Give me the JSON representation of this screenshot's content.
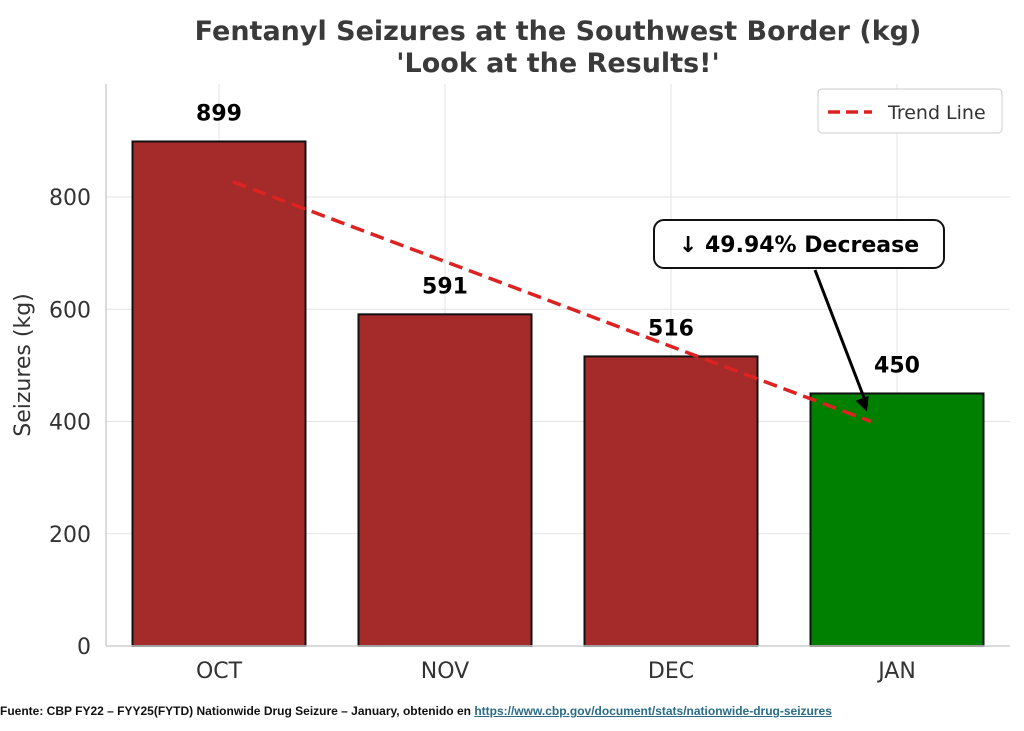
{
  "chart_data": {
    "type": "bar",
    "title_line1": "Fentanyl Seizures at the Southwest Border (kg)",
    "title_line2": "'Look at the Results!'",
    "categories": [
      "OCT",
      "NOV",
      "DEC",
      "JAN"
    ],
    "values": [
      899,
      591,
      516,
      450
    ],
    "data_labels": [
      "899",
      "591",
      "516",
      "450"
    ],
    "bar_colors": [
      "#a52a2a",
      "#a52a2a",
      "#a52a2a",
      "#008000"
    ],
    "xlabel": "",
    "ylabel": "Seizures (kg)",
    "ylim": [
      0,
      1000
    ],
    "yticks": [
      0,
      200,
      400,
      600,
      800
    ],
    "ytick_labels": [
      "0",
      "200",
      "400",
      "600",
      "800"
    ],
    "grid": true,
    "legend": {
      "position": "top-right",
      "entries": [
        "Trend Line"
      ]
    },
    "trend_line": {
      "color": "#dd2222",
      "start_value": 827,
      "end_value": 400
    },
    "annotation": {
      "text": "↓ 49.94% Decrease",
      "target_category": "JAN",
      "target_value": 450
    }
  },
  "source": {
    "prefix": "Fuente: CBP FY22 – FYY25(FYTD) Nationwide Drug Seizure – January, obtenido en ",
    "link": "https://www.cbp.gov/document/stats/nationwide-drug-seizures"
  }
}
